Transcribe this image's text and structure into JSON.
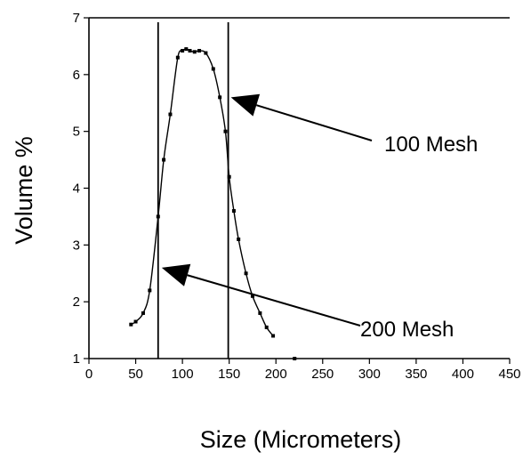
{
  "chart_data": {
    "type": "line",
    "title": "",
    "xlabel": "Size (Micrometers)",
    "ylabel": "Volume %",
    "xlim": [
      0,
      450
    ],
    "ylim": [
      1,
      7
    ],
    "xticks": [
      "0",
      "50",
      "100",
      "150",
      "200",
      "250",
      "300",
      "350",
      "400",
      "450"
    ],
    "yticks": [
      "1",
      "2",
      "3",
      "4",
      "5",
      "6",
      "7"
    ],
    "grid": false,
    "series": [
      {
        "x": [
          45,
          50,
          58,
          65,
          74,
          80,
          87,
          95,
          100,
          104,
          108,
          113,
          118,
          125,
          133,
          140,
          146,
          150,
          155,
          160,
          168,
          175,
          183,
          190,
          197
        ],
        "y": [
          1.6,
          1.65,
          1.8,
          2.2,
          3.5,
          4.5,
          5.3,
          6.3,
          6.42,
          6.45,
          6.42,
          6.4,
          6.42,
          6.38,
          6.1,
          5.6,
          5.0,
          4.2,
          3.6,
          3.1,
          2.5,
          2.1,
          1.8,
          1.55,
          1.4
        ]
      }
    ],
    "stray_point": {
      "x": 220,
      "y": 1.0
    },
    "vertical_lines": [
      {
        "x": 74,
        "label": "200 Mesh"
      },
      {
        "x": 149,
        "label": "100 Mesh"
      }
    ],
    "annotations": [
      {
        "text": "100 Mesh",
        "points_to": {
          "x": 149,
          "y": 5.6
        }
      },
      {
        "text": "200 Mesh",
        "points_to": {
          "x": 75,
          "y": 2.6
        }
      }
    ]
  }
}
